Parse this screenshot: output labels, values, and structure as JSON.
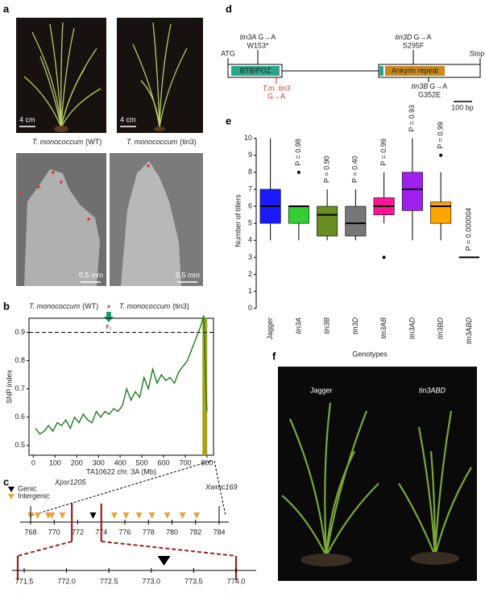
{
  "panel_labels": [
    "a",
    "b",
    "c",
    "d",
    "e",
    "f"
  ],
  "panel_a": {
    "captions": [
      {
        "species": "T. monococcum",
        "label": "(WT)"
      },
      {
        "species": "T. monococcum",
        "label": "(tin3)"
      }
    ],
    "scales": [
      "4 cm",
      "4 cm",
      "0.5 mm",
      "0.5 mm"
    ]
  },
  "panel_b_header": {
    "parent1": {
      "species": "T. monococcum",
      "label": "(WT)"
    },
    "cross": "×",
    "parent2": {
      "species": "T. monococcum",
      "label": "(tin3)"
    },
    "offspring": "F₂"
  },
  "chart_data": [
    {
      "type": "line",
      "x_label": "TA10622 chr. 3A (Mb)",
      "y_label": "SNP index",
      "color": "#1e7a1e",
      "x": [
        10,
        30,
        50,
        70,
        90,
        110,
        130,
        150,
        170,
        190,
        210,
        230,
        250,
        270,
        290,
        310,
        330,
        350,
        370,
        390,
        410,
        430,
        450,
        470,
        490,
        510,
        530,
        550,
        570,
        590,
        610,
        630,
        650,
        670,
        690,
        710,
        730,
        750,
        770,
        785,
        795,
        800
      ],
      "values": [
        0.56,
        0.54,
        0.55,
        0.57,
        0.55,
        0.58,
        0.57,
        0.59,
        0.56,
        0.6,
        0.58,
        0.61,
        0.59,
        0.58,
        0.62,
        0.6,
        0.62,
        0.61,
        0.63,
        0.62,
        0.64,
        0.7,
        0.66,
        0.69,
        0.67,
        0.74,
        0.7,
        0.77,
        0.72,
        0.75,
        0.73,
        0.74,
        0.72,
        0.76,
        0.78,
        0.8,
        0.84,
        0.88,
        0.92,
        0.96,
        0.7,
        0.62
      ],
      "xlim": [
        -20,
        830
      ],
      "ylim": [
        0.465,
        0.95
      ],
      "xticks": [
        0,
        100,
        200,
        300,
        400,
        500,
        600,
        700,
        800
      ],
      "yticks": [
        0.5,
        0.6,
        0.7,
        0.8,
        0.9
      ],
      "threshold": 0.9,
      "highlight_x": 790,
      "highlight_color": "#a8a21a"
    },
    {
      "type": "box",
      "x_label": "Genotypes",
      "y_label": "Number of tillers",
      "categories": [
        "Jagger",
        "tin3A",
        "tin3B",
        "tin3D",
        "tin3AB",
        "tin3AD",
        "tin3BD",
        "tin3ABD"
      ],
      "colors": [
        "#1a1aff",
        "#33cc33",
        "#6b8e23",
        "#777777",
        "#ff1493",
        "#a020f0",
        "#ffa500",
        "#000000"
      ],
      "boxes": [
        {
          "min": 4,
          "q1": 5,
          "median": 6,
          "q3": 7,
          "max": 10,
          "outliers": []
        },
        {
          "min": 4,
          "q1": 5,
          "median": 6,
          "q3": 6,
          "max": 6,
          "outliers": [
            8
          ]
        },
        {
          "min": 4,
          "q1": 4.25,
          "median": 5.5,
          "q3": 6,
          "max": 7,
          "outliers": []
        },
        {
          "min": 4,
          "q1": 4.25,
          "median": 5,
          "q3": 6,
          "max": 7,
          "outliers": []
        },
        {
          "min": 5,
          "q1": 5.5,
          "median": 6,
          "q3": 6.5,
          "max": 8,
          "outliers": [
            3
          ]
        },
        {
          "min": 4,
          "q1": 5.75,
          "median": 7,
          "q3": 8,
          "max": 10,
          "outliers": []
        },
        {
          "min": 4,
          "q1": 5,
          "median": 6,
          "q3": 6.25,
          "max": 8,
          "outliers": [
            9
          ]
        },
        {
          "min": 3,
          "q1": 3,
          "median": 3,
          "q3": 3,
          "max": 3,
          "outliers": []
        }
      ],
      "annotations": [
        null,
        "P = 0.98",
        "P = 0.90",
        "P = 0.40",
        "P = 0.99",
        "P = 0.93",
        "P = 0.99",
        "P = 0.000004"
      ],
      "ylim": [
        -0.25,
        10.55
      ],
      "yticks": [
        0,
        1,
        2,
        3,
        4,
        5,
        6,
        7,
        8,
        9,
        10
      ]
    }
  ],
  "genetic_map": {
    "legend": [
      "Genic",
      "Intergenic"
    ],
    "markers": [
      "Xpsr1205",
      "Xwmc169"
    ],
    "top_ticks": [
      768,
      770,
      772,
      774,
      776,
      778,
      780,
      782,
      784
    ],
    "top_lim": [
      768,
      784
    ],
    "genic": [
      773.3
    ],
    "intergenic": [
      768.0,
      768.6,
      769.5,
      769.8,
      770.7,
      775.1,
      776.1,
      777.2,
      778.3,
      779.6,
      780.9,
      782.1
    ],
    "window": [
      771.5,
      774
    ],
    "bottom_ticks": [
      771.5,
      {
        "value": 772,
        "label": "772.0"
      },
      772.5,
      {
        "value": 773,
        "label": "773.0"
      },
      773.5,
      {
        "value": 774,
        "label": "774.0"
      }
    ],
    "bottom_lim": [
      771.5,
      774
    ],
    "bottom_genic": [
      773.15
    ]
  },
  "gene_diagram": {
    "start": "ATG",
    "stop": "Stop",
    "domains": [
      "BTB/POZ",
      "Ankyrin repeat"
    ],
    "mutations": [
      {
        "gene": "tin3A",
        "change": "G→A",
        "effect": "W153*"
      },
      {
        "gene": "tin3D",
        "change": "G→A",
        "effect": "S295F"
      },
      {
        "gene": "T.m. tin3",
        "change": "G→A"
      },
      {
        "gene": "tin3B",
        "change": "G→A",
        "effect": "G352E"
      }
    ],
    "scale": "100 bp"
  },
  "panel_f": {
    "labels": [
      "Jagger",
      "tin3ABD"
    ]
  }
}
